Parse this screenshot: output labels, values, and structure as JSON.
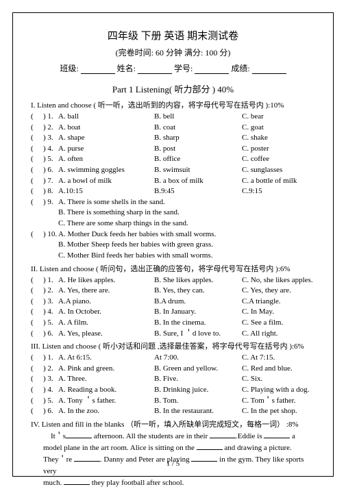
{
  "title": "四年级  下册 英语 期末测试卷",
  "subtitle": "(完卷时间:   60 分钟    满分:   100 分)",
  "info": {
    "c": "班级:",
    "n": "姓名:",
    "s": "学号:",
    "g": "成绩:"
  },
  "part": "Part 1 Listening( 听力部分 ) 40%",
  "s1": "I. Listen and choose ( 听一听，选出听到的内容，将字母代号写在括号内      ):10%",
  "r1": [
    {
      "n": ") 1.",
      "a": "A. ball",
      "b": "B. bell",
      "c": "C. bear"
    },
    {
      "n": ") 2.",
      "a": "A. boat",
      "b": "B. coat",
      "c": "C. goat"
    },
    {
      "n": ") 3.",
      "a": "A. shape",
      "b": "B. sharp",
      "c": "C. shake"
    },
    {
      "n": ") 4.",
      "a": "A. purse",
      "b": "B. post",
      "c": "C. poster"
    },
    {
      "n": ") 5.",
      "a": "A. often",
      "b": "B. office",
      "c": "C. coffee"
    },
    {
      "n": ") 6.",
      "a": "A. swimming goggles",
      "b": "B. swimsuit",
      "c": "C. sunglasses"
    },
    {
      "n": ") 7.",
      "a": "A. a bowl of milk",
      "b": "B. a box of milk",
      "c": "C. a bottle of milk"
    },
    {
      "n": ") 8.",
      "a": "A.10:15",
      "b": "B.9:45",
      "c": "C.9:15"
    }
  ],
  "r9": {
    "n": ") 9.",
    "a": "A. There is some shells in the sand.",
    "b": "B. There is something sharp in the sand.",
    "c": "C. There are some sharp things in the sand."
  },
  "r10": {
    "n": ") 10.",
    "a": "A. Mother Duck feeds her babies with small worms.",
    "b": "B. Mother Sheep feeds her babies with green grass.",
    "c": "C. Mother Bird feeds her babies with small worms."
  },
  "s2": "II. Listen and choose ( 听问句，选出正确的应答句，将字母代号写在括号内     ):6%",
  "r2": [
    {
      "n": ") 1.",
      "a": "A. He likes apples.",
      "b": "B. She likes apples.",
      "c": "C. No, she likes apples."
    },
    {
      "n": ") 2.",
      "a": "A. Yes, there are.",
      "b": "B. Yes, they can.",
      "c": "C. Yes, they are."
    },
    {
      "n": ") 3.",
      "a": "A.A piano.",
      "b": "B.A drum.",
      "c": "C.A triangle."
    },
    {
      "n": ") 4.",
      "a": "A. In October.",
      "b": "B. In January.",
      "c": "C. In May."
    },
    {
      "n": ") 5.",
      "a": "A. A film.",
      "b": "B. In the cinema.",
      "c": "C. See a film."
    },
    {
      "n": ") 6.",
      "a": "A. Yes, please.",
      "b": "B. Sure, I ＇d love to.",
      "c": "C. All right."
    }
  ],
  "s3": "III. Listen and choose ( 听小对话和问题 ,选择最佳答案，将字母代号写在括号内  ):6%",
  "r3": [
    {
      "n": ") 1.",
      "a": "A. At 6:15.",
      "b": "At 7:00.",
      "c": "C. At 7:15."
    },
    {
      "n": ") 2.",
      "a": "A. Pink and green.",
      "b": "B. Green and yellow.",
      "c": "C. Red and blue."
    },
    {
      "n": ") 3.",
      "a": "A. Three.",
      "b": "B. Five.",
      "c": "C. Six."
    },
    {
      "n": ") 4.",
      "a": "A. Reading a book.",
      "b": "B. Drinking juice.",
      "c": "C. Playing with a dog."
    },
    {
      "n": ") 5.",
      "a": "A. Tony ＇s father.",
      "b": "B. Tom.",
      "c": "C. Tom＇s father."
    },
    {
      "n": ") 6.",
      "a": "A. In the zoo.",
      "b": "B. In the restaurant.",
      "c": "C. In the pet shop."
    }
  ],
  "s4": "IV. Listen and fill in the blanks     （听一听，填入所缺单词完成短文，每格一词）        :8%",
  "fill": {
    "l1a": "It＇s",
    "l1b": " afternoon. All  the students are in  their ",
    "l1c": ".Eddie is ",
    "l1d": " a",
    "l2a": "model plane in the art room. Alice  is sitting on the ",
    "l2b": " and drawing a picture.",
    "l3a": "They＇re ",
    "l3b": ". Danny and Peter are playing ",
    "l3c": " in the gym. They like sports very",
    "l4a": "much. ",
    "l4b": " they play football after school."
  },
  "footer": "1 / 5"
}
